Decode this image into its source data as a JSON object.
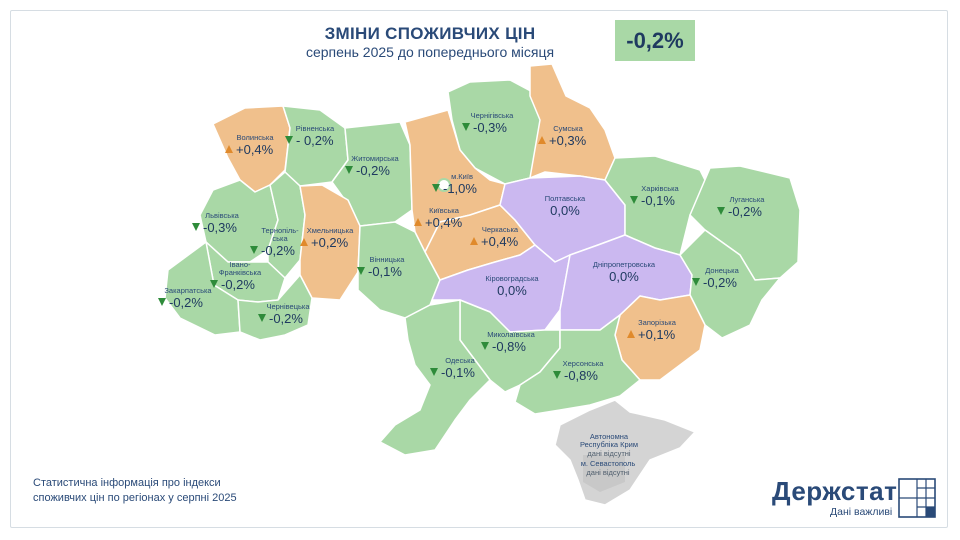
{
  "header": {
    "title": "ЗМІНИ СПОЖИВЧИХ ЦІН",
    "subtitle": "серпень 2025 до попереднього місяця",
    "total": "-0,2%"
  },
  "colors": {
    "decrease": "#a9d8a6",
    "increase": "#f0c08c",
    "no_change": "#cbb8f0",
    "no_data": "#d4d4d4",
    "down_arrow": "#2e8b3a",
    "up_arrow": "#e08a2c",
    "text": "#2a4a78"
  },
  "regions": [
    {
      "id": "volynska",
      "name": "Волинська",
      "value": "+0,4%",
      "trend": "up"
    },
    {
      "id": "rivnenska",
      "name": "Рівненська",
      "value": "- 0,2%",
      "trend": "down"
    },
    {
      "id": "zhytomyrska",
      "name": "Житомирська",
      "value": "-0,2%",
      "trend": "down"
    },
    {
      "id": "chernihivska",
      "name": "Чернігівська",
      "value": "-0,3%",
      "trend": "down"
    },
    {
      "id": "sumska",
      "name": "Сумська",
      "value": "+0,3%",
      "trend": "up"
    },
    {
      "id": "kyiv_city",
      "name": "м.Київ",
      "value": "-1,0%",
      "trend": "down"
    },
    {
      "id": "kyivska",
      "name": "Київська",
      "value": "+0,4%",
      "trend": "up"
    },
    {
      "id": "cherkaska",
      "name": "Черкаська",
      "value": "+0,4%",
      "trend": "up"
    },
    {
      "id": "poltavska",
      "name": "Полтавська",
      "value": "0,0%",
      "trend": "none"
    },
    {
      "id": "kharkivska",
      "name": "Харківська",
      "value": "-0,1%",
      "trend": "down"
    },
    {
      "id": "luhanska",
      "name": "Луганська",
      "value": "-0,2%",
      "trend": "down"
    },
    {
      "id": "lvivska",
      "name": "Львівська",
      "value": "-0,3%",
      "trend": "down"
    },
    {
      "id": "ternopilska",
      "name": "Тернопіль-\nська",
      "value": "-0,2%",
      "trend": "down"
    },
    {
      "id": "khmelnytska",
      "name": "Хмельницька",
      "value": "+0,2%",
      "trend": "up"
    },
    {
      "id": "vinnytska",
      "name": "Вінницька",
      "value": "-0,1%",
      "trend": "down"
    },
    {
      "id": "ivano_frankivska",
      "name": "Івано-\nФранківська",
      "value": "-0,2%",
      "trend": "down"
    },
    {
      "id": "zakarpatska",
      "name": "Закарпатська",
      "value": "-0,2%",
      "trend": "down"
    },
    {
      "id": "chernivetska",
      "name": "Чернівецька",
      "value": "-0,2%",
      "trend": "down"
    },
    {
      "id": "kirovohradska",
      "name": "Кіровоградська",
      "value": "0,0%",
      "trend": "none"
    },
    {
      "id": "dnipropetrovska",
      "name": "Дніпропетровська",
      "value": "0,0%",
      "trend": "none"
    },
    {
      "id": "donetska",
      "name": "Донецька",
      "value": "-0,2%",
      "trend": "down"
    },
    {
      "id": "zaporizka",
      "name": "Запорізька",
      "value": "+0,1%",
      "trend": "up"
    },
    {
      "id": "mykolaivska",
      "name": "Миколаївська",
      "value": "-0,8%",
      "trend": "down"
    },
    {
      "id": "odeska",
      "name": "Одеська",
      "value": "-0,1%",
      "trend": "down"
    },
    {
      "id": "khersonska",
      "name": "Херсонська",
      "value": "-0,8%",
      "trend": "down"
    }
  ],
  "no_data_regions": [
    {
      "id": "crimea",
      "name": "Автономна\nРеспубліка Крим",
      "note": "дані відсутні"
    },
    {
      "id": "sevastopol",
      "name": "м. Севастополь",
      "note": "дані відсутні"
    }
  ],
  "footer": {
    "line1": "Статистична інформація про індекси",
    "line2": "споживчих цін по регіонах у серпні 2025"
  },
  "logo": {
    "word": "Держстат",
    "tagline": "Дані важливі"
  }
}
